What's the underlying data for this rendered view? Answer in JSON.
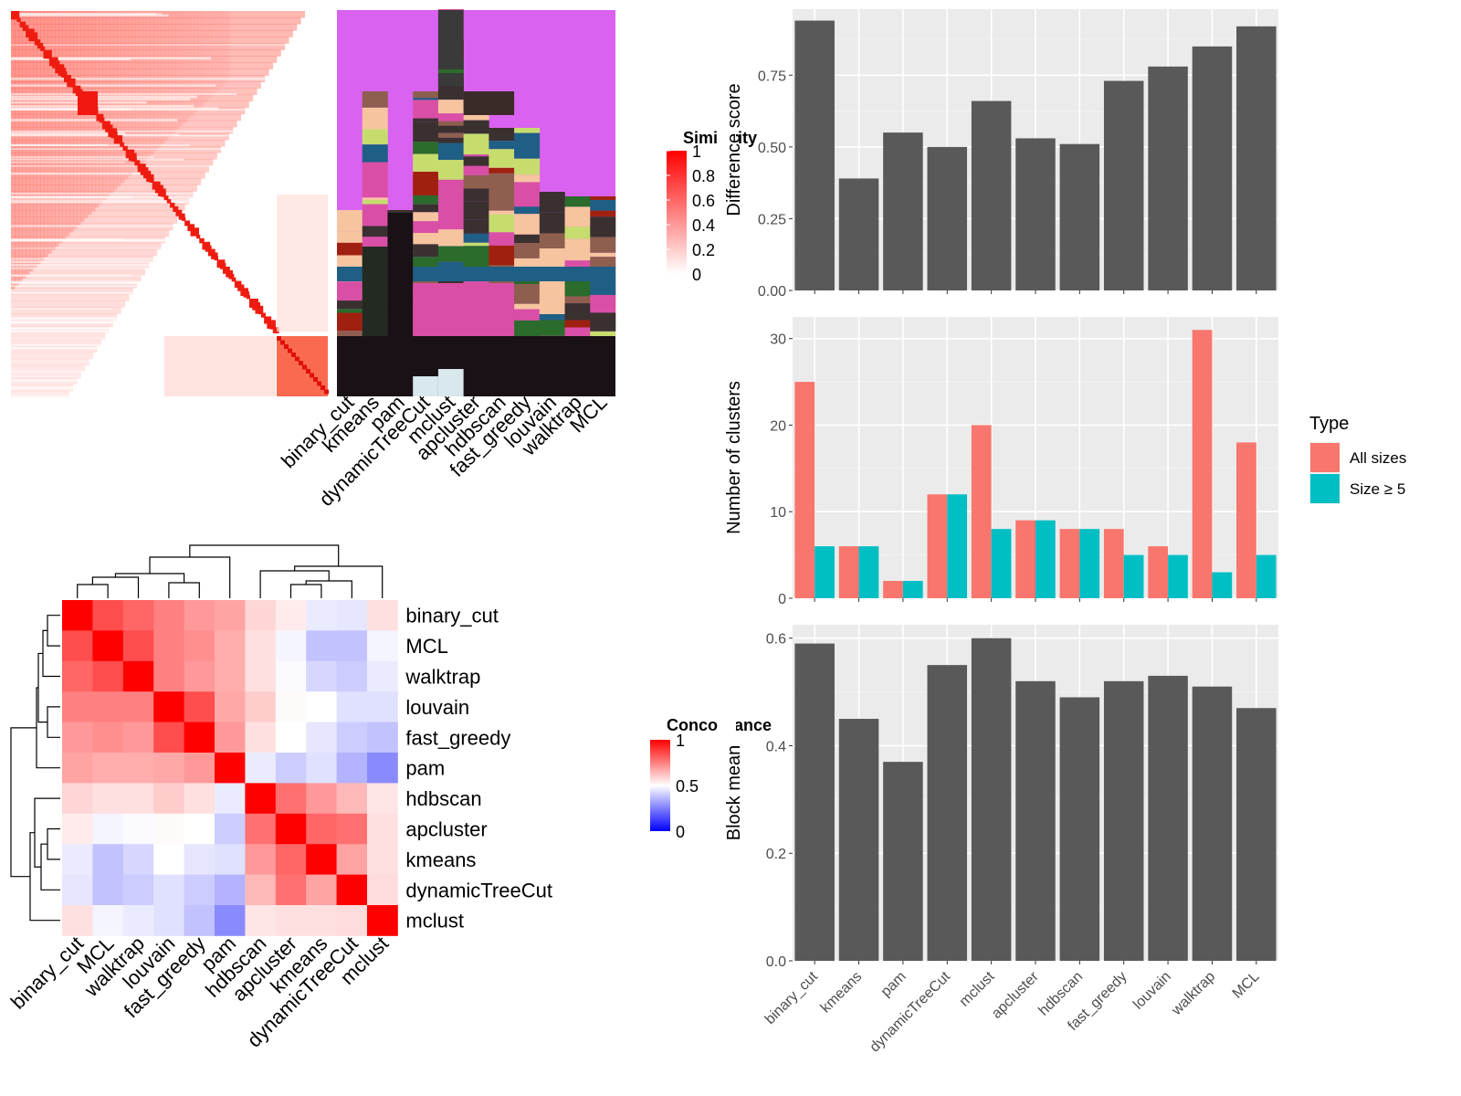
{
  "methods_top": [
    "binary_cut",
    "kmeans",
    "pam",
    "dynamicTreeCut",
    "mclust",
    "apcluster",
    "hdbscan",
    "fast_greedy",
    "louvain",
    "walktrap",
    "MCL"
  ],
  "similarity_legend": {
    "title": "Similarity",
    "ticks": [
      "1",
      "0.8",
      "0.6",
      "0.4",
      "0.2",
      "0"
    ]
  },
  "concordance_legend": {
    "title": "Concordance",
    "ticks": [
      "1",
      "0.5",
      "0"
    ]
  },
  "concordance": {
    "order": [
      "binary_cut",
      "MCL",
      "walktrap",
      "louvain",
      "fast_greedy",
      "pam",
      "hdbscan",
      "apcluster",
      "kmeans",
      "dynamicTreeCut",
      "mclust"
    ],
    "matrix": [
      [
        1.0,
        0.85,
        0.8,
        0.75,
        0.7,
        0.68,
        0.58,
        0.54,
        0.46,
        0.45,
        0.56
      ],
      [
        0.85,
        1.0,
        0.85,
        0.75,
        0.72,
        0.66,
        0.56,
        0.48,
        0.38,
        0.38,
        0.48
      ],
      [
        0.8,
        0.85,
        1.0,
        0.75,
        0.7,
        0.66,
        0.56,
        0.49,
        0.42,
        0.4,
        0.46
      ],
      [
        0.75,
        0.75,
        0.75,
        1.0,
        0.85,
        0.67,
        0.6,
        0.51,
        0.5,
        0.44,
        0.44
      ],
      [
        0.7,
        0.72,
        0.7,
        0.85,
        1.0,
        0.7,
        0.56,
        0.5,
        0.45,
        0.4,
        0.38
      ],
      [
        0.68,
        0.66,
        0.66,
        0.67,
        0.7,
        1.0,
        0.46,
        0.4,
        0.44,
        0.35,
        0.27
      ],
      [
        0.58,
        0.56,
        0.56,
        0.6,
        0.56,
        0.46,
        1.0,
        0.78,
        0.7,
        0.64,
        0.55
      ],
      [
        0.54,
        0.48,
        0.49,
        0.51,
        0.5,
        0.4,
        0.78,
        1.0,
        0.8,
        0.78,
        0.56
      ],
      [
        0.46,
        0.38,
        0.42,
        0.5,
        0.45,
        0.44,
        0.7,
        0.8,
        1.0,
        0.68,
        0.56
      ],
      [
        0.45,
        0.38,
        0.4,
        0.44,
        0.4,
        0.35,
        0.64,
        0.78,
        0.68,
        1.0,
        0.57
      ],
      [
        0.56,
        0.48,
        0.46,
        0.44,
        0.38,
        0.27,
        0.55,
        0.56,
        0.56,
        0.57,
        1.0
      ]
    ]
  },
  "chart_data": [
    {
      "type": "bar",
      "categories": [
        "binary_cut",
        "kmeans",
        "pam",
        "dynamicTreeCut",
        "mclust",
        "apcluster",
        "hdbscan",
        "fast_greedy",
        "louvain",
        "walktrap",
        "MCL"
      ],
      "values": [
        0.94,
        0.39,
        0.55,
        0.5,
        0.66,
        0.53,
        0.51,
        0.73,
        0.78,
        0.85,
        0.92
      ],
      "ylabel": "Difference score",
      "ylim": [
        0,
        0.98
      ],
      "yticks": [
        "0.00",
        "0.25",
        "0.50",
        "0.75"
      ],
      "ytick_values": [
        0,
        0.25,
        0.5,
        0.75
      ],
      "color": "#595959"
    },
    {
      "type": "bar",
      "categories": [
        "binary_cut",
        "kmeans",
        "pam",
        "dynamicTreeCut",
        "mclust",
        "apcluster",
        "hdbscan",
        "fast_greedy",
        "louvain",
        "walktrap",
        "MCL"
      ],
      "series": [
        {
          "name": "All sizes",
          "values": [
            25,
            6,
            2,
            12,
            20,
            9,
            8,
            8,
            6,
            31,
            18
          ],
          "color": "#F8766D"
        },
        {
          "name": "Size ≥ 5",
          "values": [
            6,
            6,
            2,
            12,
            8,
            9,
            8,
            5,
            5,
            3,
            5
          ],
          "color": "#00BFC4"
        }
      ],
      "ylabel": "Number of clusters",
      "ylim": [
        0,
        32.5
      ],
      "yticks": [
        "0",
        "10",
        "20",
        "30"
      ],
      "ytick_values": [
        0,
        10,
        20,
        30
      ],
      "legend_title": "Type",
      "legend_position": "right"
    },
    {
      "type": "bar",
      "categories": [
        "binary_cut",
        "kmeans",
        "pam",
        "dynamicTreeCut",
        "mclust",
        "apcluster",
        "hdbscan",
        "fast_greedy",
        "louvain",
        "walktrap",
        "MCL"
      ],
      "values": [
        0.59,
        0.45,
        0.37,
        0.55,
        0.6,
        0.52,
        0.49,
        0.52,
        0.53,
        0.51,
        0.47
      ],
      "ylabel": "Block mean",
      "ylim": [
        0,
        0.625
      ],
      "yticks": [
        "0.0",
        "0.2",
        "0.4",
        "0.6"
      ],
      "ytick_values": [
        0,
        0.2,
        0.4,
        0.6
      ],
      "color": "#595959"
    }
  ],
  "cluster_palette": [
    "#DA62F0",
    "#3A3030",
    "#C6DD6E",
    "#1F5E85",
    "#D94FA6",
    "#1A1117",
    "#A02010",
    "#F7C4A0",
    "#8E5E4E",
    "#2B6B2B",
    "#D8E8EC",
    "#F2A6A0"
  ]
}
